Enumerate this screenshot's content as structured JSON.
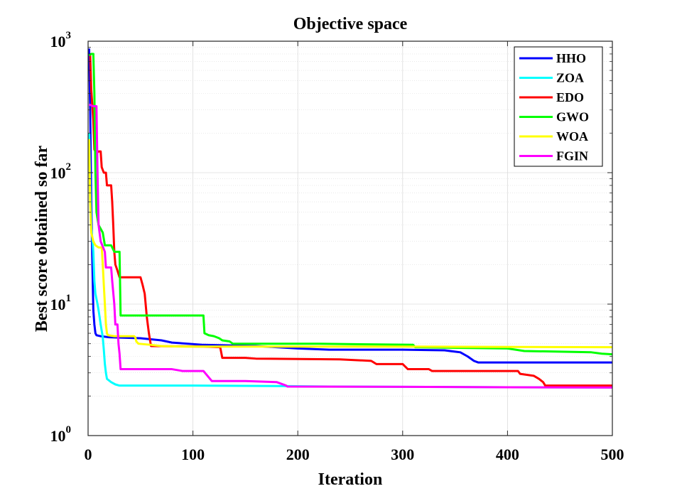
{
  "chart_data": {
    "type": "line",
    "title": "Objective space",
    "xlabel": "Iteration",
    "ylabel": "Best score obtained so far",
    "xlim": [
      0,
      500
    ],
    "ylim": [
      1,
      1000
    ],
    "yscale": "log",
    "grid": true,
    "legend_position": "top-right",
    "x_ticks": [
      "0",
      "100",
      "200",
      "300",
      "400",
      "500"
    ],
    "y_ticks": [
      {
        "base": "10",
        "exp": "0"
      },
      {
        "base": "10",
        "exp": "1"
      },
      {
        "base": "10",
        "exp": "2"
      },
      {
        "base": "10",
        "exp": "3"
      }
    ],
    "series": [
      {
        "name": "HHO",
        "color": "#0000ff",
        "points": [
          [
            1,
            880
          ],
          [
            2,
            300
          ],
          [
            3,
            60
          ],
          [
            4,
            22
          ],
          [
            5,
            9
          ],
          [
            6,
            7
          ],
          [
            7,
            6
          ],
          [
            8,
            5.8
          ],
          [
            12,
            5.7
          ],
          [
            20,
            5.6
          ],
          [
            50,
            5.5
          ],
          [
            70,
            5.3
          ],
          [
            80,
            5.1
          ],
          [
            110,
            4.9
          ],
          [
            160,
            4.8
          ],
          [
            200,
            4.6
          ],
          [
            230,
            4.5
          ],
          [
            300,
            4.5
          ],
          [
            340,
            4.45
          ],
          [
            355,
            4.3
          ],
          [
            362,
            4.0
          ],
          [
            368,
            3.7
          ],
          [
            372,
            3.6
          ],
          [
            500,
            3.6
          ]
        ]
      },
      {
        "name": "ZOA",
        "color": "#00ffff",
        "points": [
          [
            1,
            200
          ],
          [
            2,
            80
          ],
          [
            3,
            38
          ],
          [
            4,
            32
          ],
          [
            5,
            25
          ],
          [
            6,
            15
          ],
          [
            7,
            12
          ],
          [
            9,
            10
          ],
          [
            10,
            9
          ],
          [
            12,
            7
          ],
          [
            14,
            5.6
          ],
          [
            15,
            4.5
          ],
          [
            16,
            3.5
          ],
          [
            17,
            3.0
          ],
          [
            18,
            2.7
          ],
          [
            22,
            2.55
          ],
          [
            26,
            2.45
          ],
          [
            30,
            2.4
          ],
          [
            100,
            2.4
          ],
          [
            190,
            2.38
          ],
          [
            230,
            2.36
          ],
          [
            300,
            2.35
          ],
          [
            400,
            2.33
          ],
          [
            500,
            2.32
          ]
        ]
      },
      {
        "name": "EDO",
        "color": "#ff0000",
        "points": [
          [
            2,
            780
          ],
          [
            3,
            430
          ],
          [
            5,
            250
          ],
          [
            6,
            150
          ],
          [
            8,
            140
          ],
          [
            10,
            145
          ],
          [
            12,
            145
          ],
          [
            13,
            110
          ],
          [
            15,
            100
          ],
          [
            17,
            100
          ],
          [
            18,
            80
          ],
          [
            22,
            80
          ],
          [
            23,
            60
          ],
          [
            24,
            40
          ],
          [
            25,
            25
          ],
          [
            26,
            20
          ],
          [
            28,
            18
          ],
          [
            30,
            16
          ],
          [
            50,
            16
          ],
          [
            52,
            14
          ],
          [
            54,
            12
          ],
          [
            56,
            8
          ],
          [
            58,
            6
          ],
          [
            60,
            4.8
          ],
          [
            110,
            4.75
          ],
          [
            126,
            4.7
          ],
          [
            128,
            3.9
          ],
          [
            150,
            3.9
          ],
          [
            160,
            3.85
          ],
          [
            240,
            3.8
          ],
          [
            270,
            3.7
          ],
          [
            275,
            3.5
          ],
          [
            300,
            3.5
          ],
          [
            305,
            3.2
          ],
          [
            325,
            3.2
          ],
          [
            328,
            3.1
          ],
          [
            410,
            3.1
          ],
          [
            412,
            2.95
          ],
          [
            425,
            2.85
          ],
          [
            430,
            2.7
          ],
          [
            434,
            2.55
          ],
          [
            436,
            2.4
          ],
          [
            500,
            2.4
          ]
        ]
      },
      {
        "name": "GWO",
        "color": "#00ff00",
        "points": [
          [
            1,
            780
          ],
          [
            3,
            800
          ],
          [
            5,
            800
          ],
          [
            6,
            400
          ],
          [
            7,
            100
          ],
          [
            8,
            50
          ],
          [
            10,
            40
          ],
          [
            14,
            35
          ],
          [
            16,
            28
          ],
          [
            22,
            28
          ],
          [
            25,
            25
          ],
          [
            30,
            25
          ],
          [
            31,
            8.2
          ],
          [
            110,
            8.2
          ],
          [
            111,
            6.0
          ],
          [
            115,
            5.8
          ],
          [
            120,
            5.7
          ],
          [
            125,
            5.5
          ],
          [
            128,
            5.3
          ],
          [
            135,
            5.2
          ],
          [
            138,
            5.0
          ],
          [
            220,
            5.0
          ],
          [
            260,
            4.95
          ],
          [
            310,
            4.9
          ],
          [
            312,
            4.7
          ],
          [
            400,
            4.6
          ],
          [
            416,
            4.4
          ],
          [
            480,
            4.3
          ],
          [
            490,
            4.2
          ],
          [
            500,
            4.15
          ]
        ]
      },
      {
        "name": "WOA",
        "color": "#ffff00",
        "points": [
          [
            1,
            180
          ],
          [
            2,
            60
          ],
          [
            3,
            35
          ],
          [
            5,
            30
          ],
          [
            7,
            28
          ],
          [
            10,
            27
          ],
          [
            13,
            27
          ],
          [
            14,
            20
          ],
          [
            15,
            14
          ],
          [
            16,
            10
          ],
          [
            17,
            7
          ],
          [
            18,
            6
          ],
          [
            19,
            5.8
          ],
          [
            25,
            5.7
          ],
          [
            44,
            5.7
          ],
          [
            45,
            5.6
          ],
          [
            46,
            5.2
          ],
          [
            48,
            5.0
          ],
          [
            60,
            4.9
          ],
          [
            70,
            4.8
          ],
          [
            90,
            4.75
          ],
          [
            200,
            4.75
          ],
          [
            300,
            4.75
          ],
          [
            500,
            4.7
          ]
        ]
      },
      {
        "name": "FGIN",
        "color": "#ff00ff",
        "points": [
          [
            1,
            330
          ],
          [
            5,
            320
          ],
          [
            8,
            320
          ],
          [
            9,
            100
          ],
          [
            10,
            40
          ],
          [
            12,
            30
          ],
          [
            16,
            25
          ],
          [
            17,
            19
          ],
          [
            22,
            19
          ],
          [
            23,
            15
          ],
          [
            25,
            10
          ],
          [
            26,
            7
          ],
          [
            28,
            7
          ],
          [
            29,
            5
          ],
          [
            30,
            4.2
          ],
          [
            31,
            3.2
          ],
          [
            80,
            3.2
          ],
          [
            90,
            3.1
          ],
          [
            110,
            3.1
          ],
          [
            118,
            2.6
          ],
          [
            150,
            2.6
          ],
          [
            180,
            2.55
          ],
          [
            189,
            2.4
          ],
          [
            190,
            2.36
          ],
          [
            300,
            2.35
          ],
          [
            400,
            2.33
          ],
          [
            500,
            2.32
          ]
        ]
      }
    ]
  }
}
